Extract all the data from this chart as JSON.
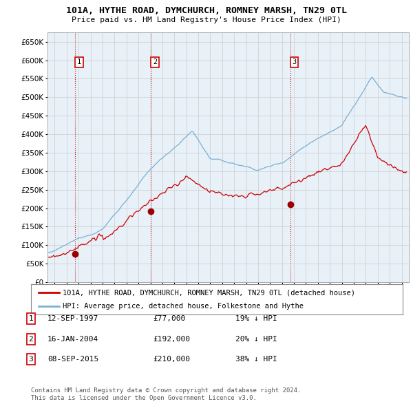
{
  "title": "101A, HYTHE ROAD, DYMCHURCH, ROMNEY MARSH, TN29 0TL",
  "subtitle": "Price paid vs. HM Land Registry's House Price Index (HPI)",
  "ylim": [
    0,
    675000
  ],
  "yticks": [
    0,
    50000,
    100000,
    150000,
    200000,
    250000,
    300000,
    350000,
    400000,
    450000,
    500000,
    550000,
    600000,
    650000
  ],
  "transactions": [
    {
      "label": "1",
      "date_str": "12-SEP-1997",
      "date_x": 1997.71,
      "price": 77000,
      "pct": "19%",
      "direction": "↓"
    },
    {
      "label": "2",
      "date_str": "16-JAN-2004",
      "date_x": 2004.04,
      "price": 192000,
      "pct": "20%",
      "direction": "↓"
    },
    {
      "label": "3",
      "date_str": "08-SEP-2015",
      "date_x": 2015.69,
      "price": 210000,
      "pct": "38%",
      "direction": "↓"
    }
  ],
  "vline_color": "#cc0000",
  "vline_style": ":",
  "marker_color": "#990000",
  "hpi_line_color": "#7ab0d4",
  "price_line_color": "#cc0000",
  "grid_color": "#cccccc",
  "plot_bg_color": "#e8f0f8",
  "background_color": "#ffffff",
  "legend_label_price": "101A, HYTHE ROAD, DYMCHURCH, ROMNEY MARSH, TN29 0TL (detached house)",
  "legend_label_hpi": "HPI: Average price, detached house, Folkestone and Hythe",
  "footer1": "Contains HM Land Registry data © Crown copyright and database right 2024.",
  "footer2": "This data is licensed under the Open Government Licence v3.0.",
  "xlim_left": 1995.4,
  "xlim_right": 2025.6
}
